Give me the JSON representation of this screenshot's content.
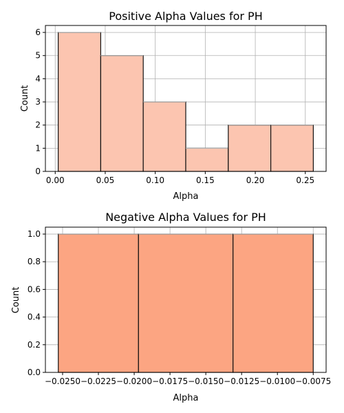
{
  "chart_data": [
    {
      "type": "bar",
      "title": "Positive Alpha Values for PH",
      "xlabel": "Alpha",
      "ylabel": "Count",
      "bin_edges": [
        0.003,
        0.0455,
        0.088,
        0.1305,
        0.173,
        0.2155,
        0.258
      ],
      "values": [
        6,
        5,
        3,
        1,
        2,
        2
      ],
      "xlim": [
        -0.0098,
        0.2708
      ],
      "ylim": [
        0,
        6.3
      ],
      "xticks": [
        0.0,
        0.05,
        0.1,
        0.15,
        0.2,
        0.25
      ],
      "xtick_labels": [
        "0.00",
        "0.05",
        "0.10",
        "0.15",
        "0.20",
        "0.25"
      ],
      "yticks": [
        0,
        1,
        2,
        3,
        4,
        5,
        6
      ],
      "ytick_labels": [
        "0",
        "1",
        "2",
        "3",
        "4",
        "5",
        "6"
      ],
      "grid": true,
      "bar_color": "#fcc5b0"
    },
    {
      "type": "bar",
      "title": "Negative Alpha Values for PH",
      "xlabel": "Alpha",
      "ylabel": "Count",
      "bin_edges": [
        -0.0253,
        -0.0197,
        -0.0131,
        -0.0075
      ],
      "values": [
        1,
        1,
        1
      ],
      "xlim": [
        -0.0262,
        -0.0066
      ],
      "ylim": [
        0,
        1.05
      ],
      "xticks": [
        -0.025,
        -0.0225,
        -0.02,
        -0.0175,
        -0.015,
        -0.0125,
        -0.01,
        -0.0075
      ],
      "xtick_labels": [
        "−0.0250",
        "−0.0225",
        "−0.0200",
        "−0.0175",
        "−0.0150",
        "−0.0125",
        "−0.0100",
        "−0.0075"
      ],
      "yticks": [
        0,
        0.2,
        0.4,
        0.6,
        0.8,
        1.0
      ],
      "ytick_labels": [
        "0.0",
        "0.2",
        "0.4",
        "0.6",
        "0.8",
        "1.0"
      ],
      "grid": true,
      "bar_color": "#fca582"
    }
  ]
}
